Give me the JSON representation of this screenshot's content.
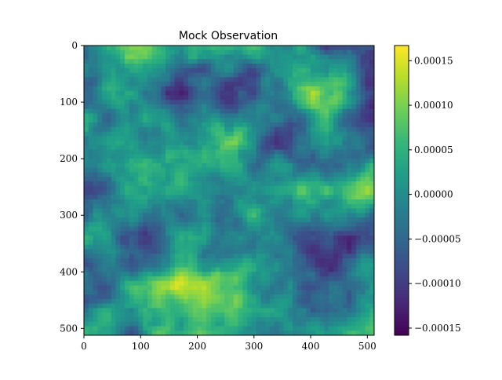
{
  "chart_data": {
    "type": "heatmap",
    "title": "Mock Observation",
    "xlabel": "",
    "ylabel": "",
    "colormap": "viridis",
    "image_size": [
      512,
      512
    ],
    "xlim": [
      0,
      512
    ],
    "ylim": [
      512,
      0
    ],
    "xticks": [
      0,
      100,
      200,
      300,
      400,
      500
    ],
    "yticks": [
      0,
      100,
      200,
      300,
      400,
      500
    ],
    "xtick_labels": [
      "0",
      "100",
      "200",
      "300",
      "400",
      "500"
    ],
    "ytick_labels": [
      "0",
      "100",
      "200",
      "300",
      "400",
      "500"
    ],
    "colorbar": {
      "vmin": -0.000158,
      "vmax": 0.000167,
      "ticks": [
        -0.00015,
        -0.0001,
        -5e-05,
        0.0,
        5e-05,
        0.0001,
        0.00015
      ],
      "tick_labels": [
        "−0.00015",
        "−0.00010",
        "−0.00005",
        "0.00000",
        "0.00005",
        "0.00010",
        "0.00015"
      ],
      "colors": [
        "#440154",
        "#482878",
        "#3e4989",
        "#31688e",
        "#26828e",
        "#1f9e89",
        "#35b779",
        "#6ece58",
        "#b5de2b",
        "#fde725"
      ]
    }
  }
}
